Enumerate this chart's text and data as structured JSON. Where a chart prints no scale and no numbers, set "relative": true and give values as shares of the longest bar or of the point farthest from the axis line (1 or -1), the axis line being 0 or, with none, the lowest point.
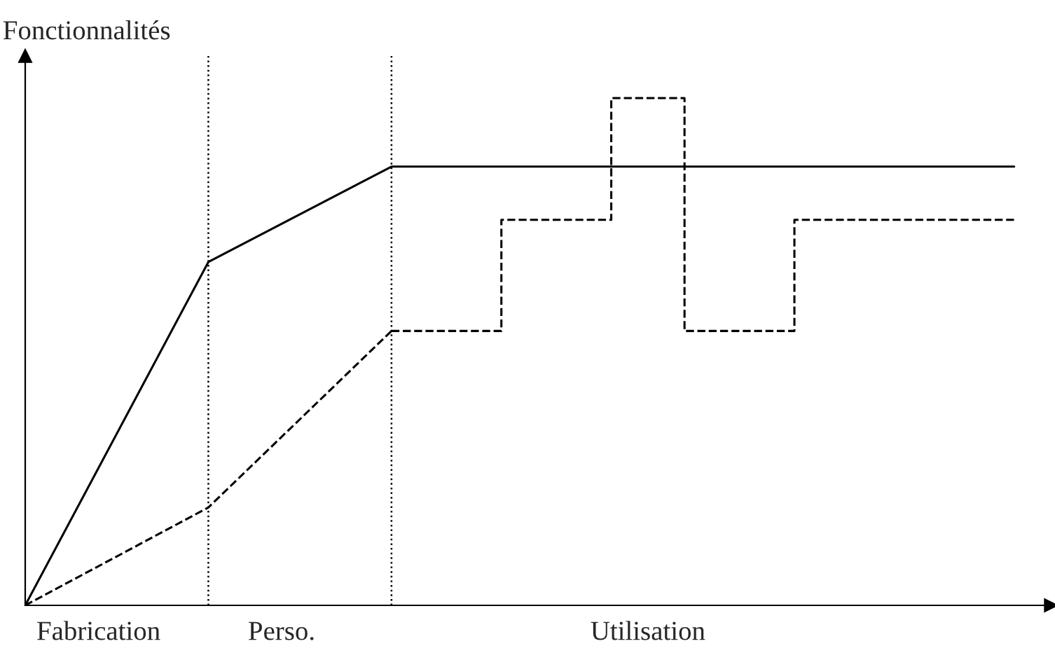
{
  "chart_data": {
    "type": "line",
    "relative": true,
    "ylabel": "Fonctionnalités",
    "categories": [
      null,
      null,
      "Fabrication",
      null,
      null,
      null,
      null,
      "Perso.",
      null,
      null,
      null,
      null,
      null,
      null,
      null,
      null,
      null,
      "Utilisation",
      null,
      null,
      null,
      null,
      null,
      null,
      null,
      null,
      null,
      null,
      null
    ],
    "series": [
      {
        "color": "#000000",
        "line_style": "solid",
        "values": [
          0,
          null,
          null,
          null,
          null,
          0.677,
          null,
          null,
          null,
          null,
          0.865,
          null,
          null,
          null,
          null,
          null,
          null,
          null,
          null,
          null,
          null,
          null,
          null,
          null,
          null,
          null,
          null,
          0.865,
          null
        ]
      },
      {
        "color": "#000000",
        "line_style": "dashed",
        "values": [
          0,
          null,
          null,
          null,
          null,
          0.193,
          null,
          null,
          null,
          null,
          0.541,
          null,
          null,
          null,
          null,
          null,
          null,
          null,
          null,
          null,
          null,
          null,
          null,
          null,
          null,
          null,
          null,
          null,
          null
        ]
      },
      {
        "type": "step",
        "color": "#000000",
        "line_style": "dashed",
        "values": [
          null,
          null,
          null,
          null,
          null,
          null,
          null,
          null,
          null,
          null,
          0.541,
          null,
          null,
          0.76,
          null,
          null,
          1,
          null,
          0.541,
          null,
          null,
          0.76,
          null,
          null,
          null,
          null,
          null,
          0.76,
          null
        ]
      }
    ],
    "marker": "none"
  }
}
